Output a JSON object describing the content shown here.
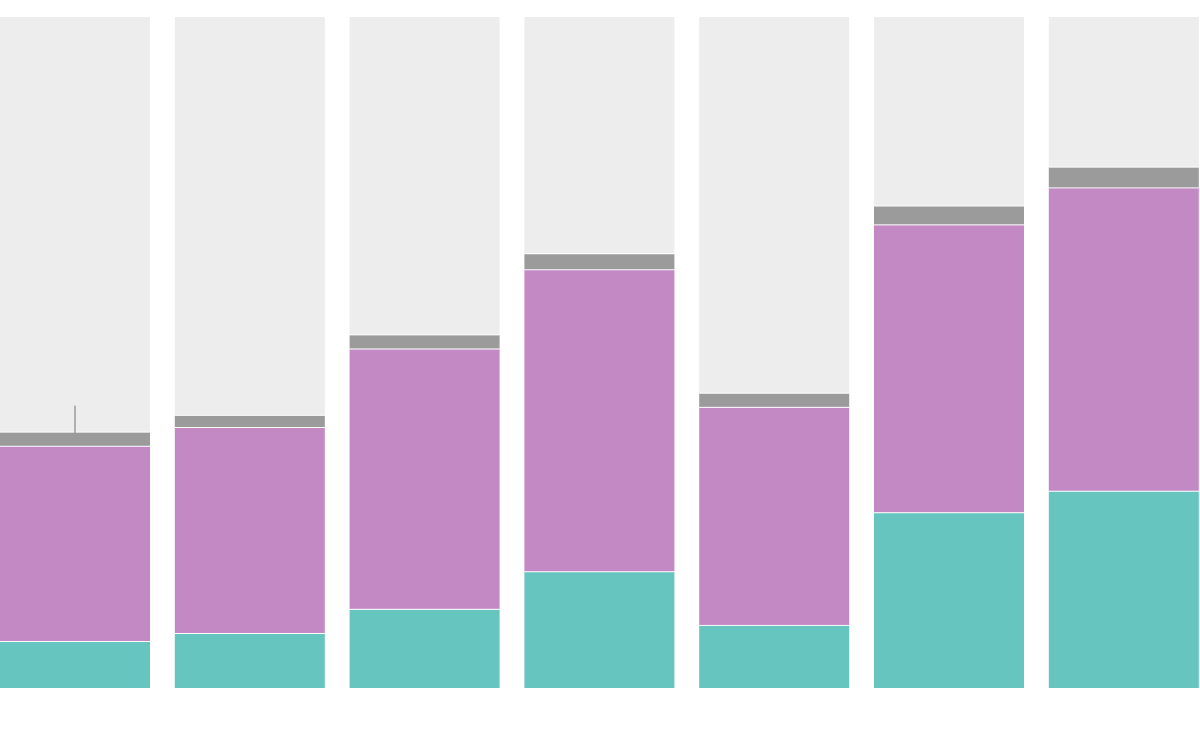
{
  "chart_data": {
    "type": "bar",
    "stacked": true,
    "grid": false,
    "legend": "none",
    "ylim": [
      0,
      100
    ],
    "categories": [
      "",
      "",
      "",
      "",
      "",
      "",
      ""
    ],
    "series": [
      {
        "values": [
          7,
          8.2,
          11.8,
          17.4,
          9.4,
          26.2,
          29.4
        ]
      },
      {
        "values": [
          29.1,
          30.7,
          38.8,
          45.0,
          32.5,
          42.9,
          45.2
        ]
      },
      {
        "values": [
          2.1,
          1.8,
          2.1,
          2.4,
          2.1,
          2.8,
          3.1
        ]
      },
      {
        "values": [
          61.8,
          59.3,
          47.3,
          35.2,
          56.0,
          28.1,
          22.3
        ]
      }
    ],
    "colors": [
      "#67c5c0",
      "#c389c5",
      "#9b9b9b",
      "#ededed"
    ],
    "annotations": [
      {
        "bar_index": 0,
        "type": "marker-line"
      }
    ]
  }
}
